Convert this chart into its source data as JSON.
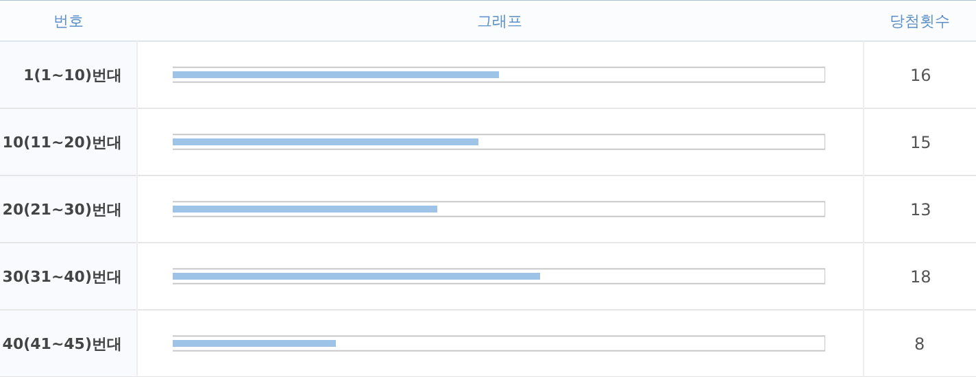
{
  "chart_data": {
    "type": "bar",
    "orientation": "horizontal",
    "ylabel": "번호",
    "xlabel": "그래프",
    "annotations": [
      "당첨횟수"
    ],
    "categories": [
      "1(1~10)번대",
      "10(11~20)번대",
      "20(21~30)번대",
      "30(31~40)번대",
      "40(41~45)번대"
    ],
    "values": [
      16,
      15,
      13,
      18,
      8
    ],
    "color": "#9dc3e6",
    "xlim": [
      0,
      32
    ],
    "data_labels": true,
    "grid": false,
    "legend": false,
    "tick_labels": "y"
  }
}
